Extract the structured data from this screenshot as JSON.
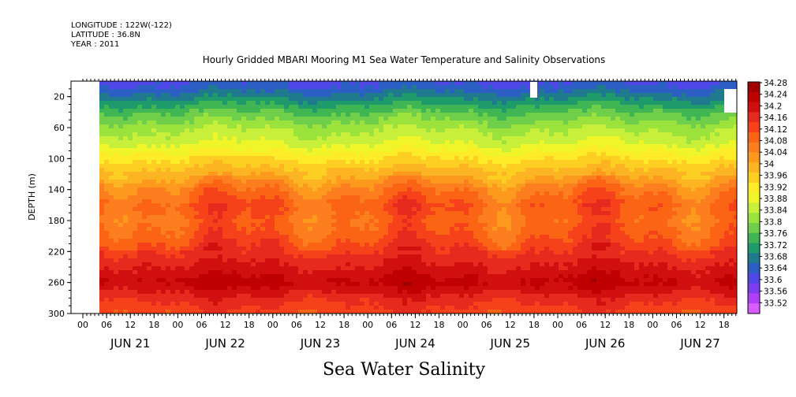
{
  "header": {
    "longitude": "LONGITUDE : 122W(-122)",
    "latitude": "LATITUDE : 36.8N",
    "year": "YEAR : 2011",
    "title": "Hourly Gridded MBARI Mooring M1 Sea Water Temperature and Salinity Observations"
  },
  "footer": {
    "caption": "Sea Water Salinity"
  },
  "chart_data": {
    "type": "heatmap",
    "title": "Hourly Gridded MBARI Mooring M1 Sea Water Temperature and Salinity Observations",
    "xlabel": "",
    "ylabel": "DEPTH (m)",
    "ylim": [
      300,
      0
    ],
    "y_ticks": [
      20,
      60,
      100,
      140,
      180,
      220,
      260,
      300
    ],
    "x_hour_labels": [
      "00",
      "06",
      "12",
      "18",
      "00",
      "06",
      "12",
      "18",
      "00",
      "06",
      "12",
      "18",
      "00",
      "06",
      "12",
      "18",
      "00",
      "06",
      "12",
      "18",
      "00",
      "06",
      "12",
      "18",
      "00",
      "06",
      "12",
      "18"
    ],
    "x_day_labels": [
      "JUN 21",
      "JUN 22",
      "JUN 23",
      "JUN 24",
      "JUN 25",
      "JUN 26",
      "JUN 27"
    ],
    "colorbar": {
      "labels": [
        "34.28",
        "34.24",
        "34.2",
        "34.16",
        "34.12",
        "34.08",
        "34.04",
        "34",
        "33.96",
        "33.92",
        "33.88",
        "33.84",
        "33.8",
        "33.76",
        "33.72",
        "33.68",
        "33.64",
        "33.6",
        "33.56",
        "33.52"
      ],
      "colors": [
        "#a00000",
        "#be0000",
        "#d20f0f",
        "#e62b1e",
        "#f5421a",
        "#fa6414",
        "#fc7e1e",
        "#fd9a1e",
        "#fdb422",
        "#fdcf23",
        "#fdec27",
        "#f0f52a",
        "#c8ef3a",
        "#9be23c",
        "#6fcf4a",
        "#3fb554",
        "#1f9a6a",
        "#1e7a8c",
        "#2b5fc4",
        "#5048e6",
        "#7c3cf0",
        "#b040f8",
        "#d85cff"
      ]
    },
    "depth_profile": [
      {
        "depth": 5,
        "salinity": 33.64
      },
      {
        "depth": 20,
        "salinity": 33.7
      },
      {
        "depth": 40,
        "salinity": 33.78
      },
      {
        "depth": 60,
        "salinity": 33.84
      },
      {
        "depth": 80,
        "salinity": 33.88
      },
      {
        "depth": 100,
        "salinity": 33.95
      },
      {
        "depth": 120,
        "salinity": 34.01
      },
      {
        "depth": 140,
        "salinity": 34.08
      },
      {
        "depth": 160,
        "salinity": 34.12
      },
      {
        "depth": 180,
        "salinity": 34.1
      },
      {
        "depth": 200,
        "salinity": 34.12
      },
      {
        "depth": 220,
        "salinity": 34.16
      },
      {
        "depth": 240,
        "salinity": 34.2
      },
      {
        "depth": 260,
        "salinity": 34.24
      },
      {
        "depth": 280,
        "salinity": 34.18
      },
      {
        "depth": 300,
        "salinity": 34.14
      }
    ]
  }
}
